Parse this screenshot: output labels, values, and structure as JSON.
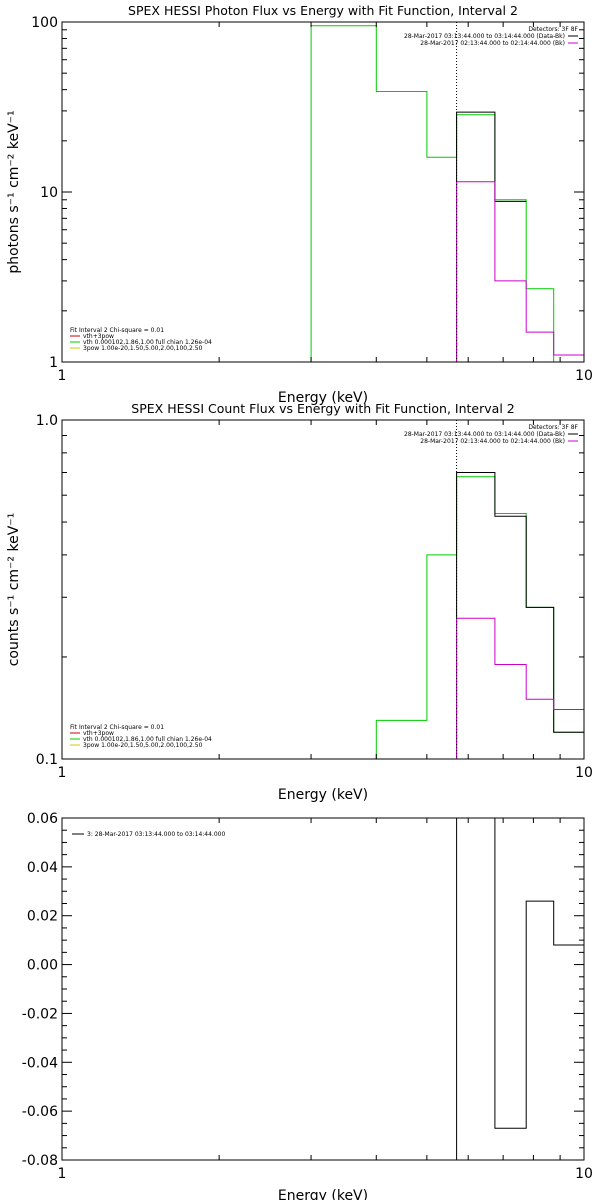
{
  "chart_data": [
    {
      "type": "line",
      "title": "SPEX HESSI Photon Flux vs Energy with Fit Function, Interval 2",
      "xlabel": "Energy (keV)",
      "ylabel": "photons s⁻¹ cm⁻² keV⁻¹",
      "xscale": "log",
      "yscale": "log",
      "xlim": [
        1,
        10
      ],
      "ylim": [
        1,
        100
      ],
      "x_ticks": [
        "1",
        "10"
      ],
      "y_ticks": [
        "1",
        "10",
        "100"
      ],
      "grid": false,
      "legend_top_right": {
        "header": "Detectors: 3F 8F",
        "entries": [
          {
            "label": "28-Mar-2017 03:13:44.000 to 03:14:44.000 (Data-Bk)",
            "color": "#000000"
          },
          {
            "label": "28-Mar-2017 02:13:44.000 to 02:14:44.000 (Bk)",
            "color": "#cc00cc"
          }
        ]
      },
      "legend_bottom_left": {
        "header": "Fit Interval 2   Chi-square = 0.01",
        "entries": [
          {
            "label": "vth+3pow",
            "color": "#cc0000"
          },
          {
            "label": "vth 0.000102,1.86,1.00   full chian 1.26e-04",
            "color": "#00cc00"
          },
          {
            "label": "3pow 1.00e-20,1.50,5.00,2.00,100,2.50",
            "color": "#cccc00"
          }
        ]
      },
      "vline_x": 5.7,
      "series": [
        {
          "color": "#00cc00",
          "edges": [
            3,
            4,
            5,
            5.7,
            6.75,
            7.75,
            8.75,
            10
          ],
          "values": [
            95,
            39,
            16,
            28.5,
            9,
            2.7,
            0.95
          ]
        },
        {
          "color": "#000000",
          "edges": [
            5.7,
            6.75,
            7.75,
            8.75,
            10
          ],
          "values": [
            29.5,
            8.8,
            null,
            1.0
          ]
        },
        {
          "color": "#cc00cc",
          "edges": [
            5.7,
            6.75,
            7.75,
            8.75,
            10
          ],
          "values": [
            11.5,
            3.0,
            1.5,
            1.1
          ]
        }
      ]
    },
    {
      "type": "line",
      "title": "SPEX HESSI Count Flux vs Energy with Fit Function, Interval 2",
      "xlabel": "Energy (keV)",
      "ylabel": "counts s⁻¹ cm⁻² keV⁻¹",
      "xscale": "log",
      "yscale": "log",
      "xlim": [
        1,
        10
      ],
      "ylim": [
        0.1,
        1.0
      ],
      "x_ticks": [
        "1",
        "10"
      ],
      "y_ticks": [
        "0.1",
        "1.0"
      ],
      "grid": false,
      "legend_top_right": {
        "header": "Detectors: 3F 8F",
        "entries": [
          {
            "label": "28-Mar-2017 03:13:44.000 to 03:14:44.000 (Data-Bk)",
            "color": "#000000"
          },
          {
            "label": "28-Mar-2017 02:13:44.000 to 02:14:44.000 (Bk)",
            "color": "#cc00cc"
          }
        ]
      },
      "legend_bottom_left": {
        "header": "Fit Interval 2   Chi-square = 0.01",
        "entries": [
          {
            "label": "vth+3pow",
            "color": "#cc0000"
          },
          {
            "label": "vth 0.000102,1.86,1.00   full chian 1.26e-04",
            "color": "#00cc00"
          },
          {
            "label": "3pow 1.00e-20,1.50,5.00,2.00,100,2.50",
            "color": "#cccc00"
          }
        ]
      },
      "vline_x": 5.7,
      "series": [
        {
          "color": "#00cc00",
          "edges": [
            4,
            5,
            5.7,
            6.75,
            7.75,
            8.75,
            10
          ],
          "values": [
            0.13,
            0.4,
            0.68,
            0.53,
            0.28,
            0.12
          ]
        },
        {
          "color": "#000000",
          "edges": [
            5.7,
            6.75,
            7.75,
            8.75,
            10
          ],
          "values": [
            0.7,
            0.52,
            0.28,
            0.12
          ]
        },
        {
          "color": "#cc00cc",
          "edges": [
            5.7,
            6.75,
            7.75,
            8.75,
            10
          ],
          "values": [
            0.26,
            0.19,
            0.15,
            0.14
          ]
        }
      ]
    },
    {
      "type": "line",
      "title": "",
      "xlabel": "Energy (keV)",
      "ylabel": "",
      "xscale": "log",
      "yscale": "linear",
      "xlim": [
        1,
        10
      ],
      "ylim": [
        -0.08,
        0.06
      ],
      "x_ticks": [
        "1",
        "10"
      ],
      "y_ticks": [
        "-0.08",
        "-0.06",
        "-0.04",
        "-0.02",
        "0.00",
        "0.02",
        "0.04",
        "0.06"
      ],
      "grid": false,
      "legend_top_left": {
        "entries": [
          {
            "label": "3: 28-Mar-2017 03:13:44.000 to 03:14:44.000",
            "color": "#000000"
          }
        ]
      },
      "series": [
        {
          "color": "#000000",
          "edges": [
            5.7,
            6.75,
            7.75,
            8.75,
            10
          ],
          "values": [
            0.06,
            -0.067,
            0.026,
            0.008
          ]
        }
      ]
    }
  ]
}
